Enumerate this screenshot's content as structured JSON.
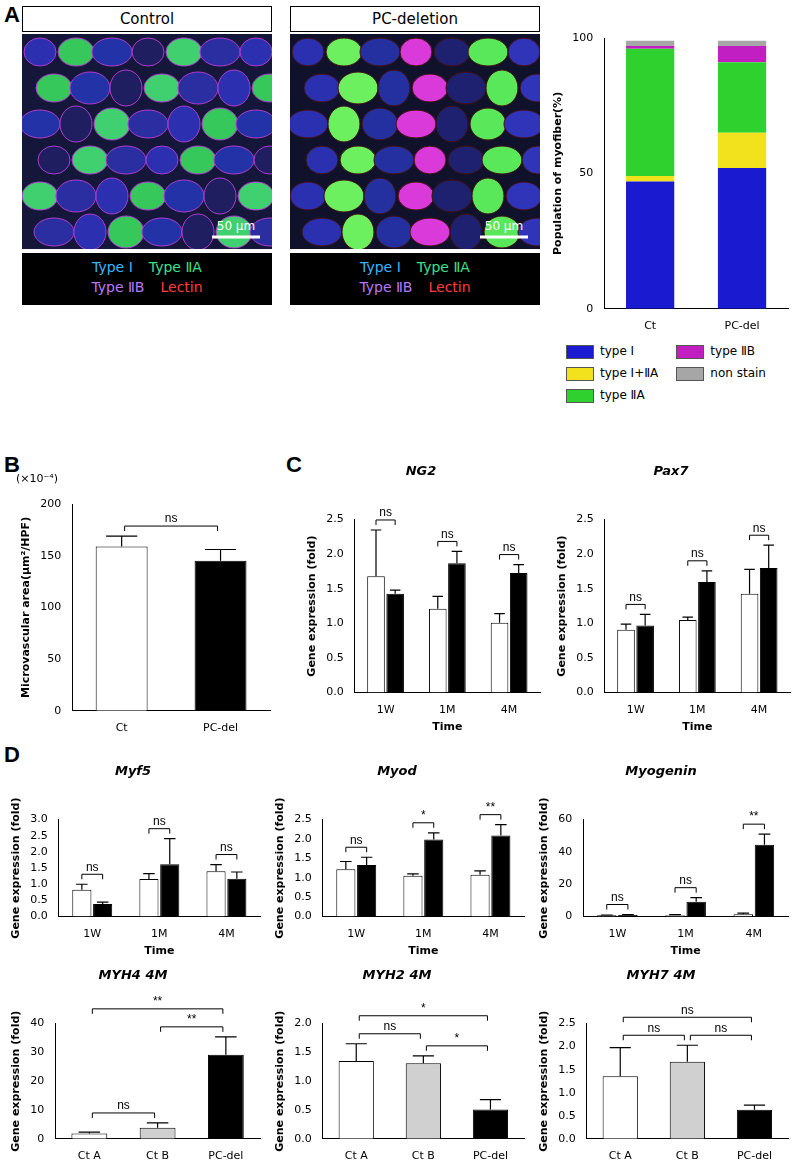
{
  "panel_labels": [
    "A",
    "B",
    "C",
    "D"
  ],
  "images": [
    {
      "header": "Control",
      "caption": [
        "Type Ⅰ",
        "Type ⅡA",
        "Type ⅡB",
        "Lectin"
      ],
      "scale_bar": "50 μm"
    },
    {
      "header": "PC-deletion",
      "caption": [
        "Type Ⅰ",
        "Type ⅡA",
        "Type ⅡB",
        "Lectin"
      ],
      "scale_bar": "50 μm"
    }
  ],
  "chart_data": [
    {
      "type": "bar",
      "stacked": true,
      "legend": "bottom",
      "ylabel": "Population of myofiber(%)",
      "categories": [
        "Ct",
        "PC-del"
      ],
      "series": [
        {
          "name": "type Ⅰ",
          "color": "#1a1ad0",
          "values": [
            47,
            52
          ]
        },
        {
          "name": "type Ⅰ+ⅡA",
          "color": "#f2e21e",
          "values": [
            2,
            13
          ]
        },
        {
          "name": "type ⅡA",
          "color": "#2fd12f",
          "values": [
            47,
            26
          ]
        },
        {
          "name": "type ⅡB",
          "color": "#c21fc2",
          "values": [
            1,
            6
          ]
        },
        {
          "name": "non stain",
          "color": "#a6a6a6",
          "values": [
            2,
            2
          ]
        }
      ],
      "ylim": [
        0,
        100
      ],
      "yticks": [
        0,
        50,
        100
      ]
    },
    {
      "type": "bar",
      "ylabel": "Microvascular area(μm²/HPF)",
      "annotation": "(×10⁻⁴)",
      "categories": [
        "Ct",
        "PC-del"
      ],
      "values": [
        159,
        145
      ],
      "errors": [
        10,
        11
      ],
      "colors": [
        "#ffffff",
        "#000000"
      ],
      "ylim": [
        0,
        200
      ],
      "yticks": [
        0,
        50,
        100,
        150,
        200
      ],
      "comparisons": [
        {
          "between": [
            "Ct",
            "PC-del"
          ],
          "label": "ns"
        }
      ]
    },
    {
      "type": "bar",
      "title": "NG2",
      "xlabel": "Time",
      "ylabel": "Gene expression (fold)",
      "categories": [
        "1W",
        "1M",
        "4M"
      ],
      "series": [
        {
          "color": "#ffffff",
          "values": [
            1.68,
            1.21,
            1.01
          ],
          "errors": [
            0.67,
            0.18,
            0.13
          ]
        },
        {
          "color": "#000000",
          "values": [
            1.43,
            1.87,
            1.73
          ],
          "errors": [
            0.05,
            0.17,
            0.12
          ]
        }
      ],
      "ylim": [
        0,
        2.5
      ],
      "yticks": [
        {
          "value": 0,
          "label": "0.0"
        },
        {
          "value": 0.5,
          "label": "0.5"
        },
        {
          "value": 1,
          "label": "1.0"
        },
        {
          "value": 1.5,
          "label": "1.5"
        },
        {
          "value": 2,
          "label": "2.0"
        },
        {
          "value": 2.5,
          "label": "2.5"
        }
      ],
      "annotations": [
        "ns",
        "ns",
        "ns"
      ]
    },
    {
      "type": "bar",
      "title": "Pax7",
      "xlabel": "Time",
      "ylabel": "Gene expression (fold)",
      "categories": [
        "1W",
        "1M",
        "4M"
      ],
      "series": [
        {
          "color": "#ffffff",
          "values": [
            0.91,
            1.05,
            1.43
          ],
          "errors": [
            0.08,
            0.04,
            0.35
          ]
        },
        {
          "color": "#000000",
          "values": [
            0.97,
            1.6,
            1.8
          ],
          "errors": [
            0.16,
            0.16,
            0.33
          ]
        }
      ],
      "ylim": [
        0,
        2.5
      ],
      "yticks": [
        {
          "value": 0,
          "label": "0.0"
        },
        {
          "value": 0.5,
          "label": "0.5"
        },
        {
          "value": 1,
          "label": "1.0"
        },
        {
          "value": 1.5,
          "label": "1.5"
        },
        {
          "value": 2,
          "label": "2.0"
        },
        {
          "value": 2.5,
          "label": "2.5"
        }
      ],
      "annotations": [
        "ns",
        "ns",
        "ns"
      ]
    },
    {
      "type": "bar",
      "title": "Myf5",
      "xlabel": "Time",
      "ylabel": "Gene expression (fold)",
      "categories": [
        "1W",
        "1M",
        "4M"
      ],
      "series": [
        {
          "color": "#ffffff",
          "values": [
            0.83,
            1.16,
            1.4
          ],
          "errors": [
            0.17,
            0.17,
            0.21
          ]
        },
        {
          "color": "#000000",
          "values": [
            0.39,
            1.62,
            1.17
          ],
          "errors": [
            0.06,
            0.79,
            0.21
          ]
        }
      ],
      "ylim": [
        0,
        3
      ],
      "yticks": [
        {
          "value": 0,
          "label": "0.0"
        },
        {
          "value": 0.5,
          "label": "0.5"
        },
        {
          "value": 1,
          "label": "1.0"
        },
        {
          "value": 1.5,
          "label": "1.5"
        },
        {
          "value": 2,
          "label": "2.0"
        },
        {
          "value": 2.5,
          "label": "2.5"
        },
        {
          "value": 3,
          "label": "3.0"
        }
      ],
      "annotations": [
        "ns",
        "ns",
        "ns"
      ]
    },
    {
      "type": "bar",
      "title": "Myod",
      "xlabel": "Time",
      "ylabel": "Gene expression (fold)",
      "categories": [
        "1W",
        "1M",
        "4M"
      ],
      "series": [
        {
          "color": "#ffffff",
          "values": [
            1.22,
            1.05,
            1.08
          ],
          "errors": [
            0.2,
            0.05,
            0.1
          ]
        },
        {
          "color": "#000000",
          "values": [
            1.33,
            1.99,
            2.09
          ],
          "errors": [
            0.2,
            0.17,
            0.28
          ]
        }
      ],
      "ylim": [
        0,
        2.5
      ],
      "yticks": [
        {
          "value": 0,
          "label": "0.0"
        },
        {
          "value": 0.5,
          "label": "0.5"
        },
        {
          "value": 1,
          "label": "1.0"
        },
        {
          "value": 1.5,
          "label": "1.5"
        },
        {
          "value": 2,
          "label": "2.0"
        },
        {
          "value": 2.5,
          "label": "2.5"
        }
      ],
      "annotations": [
        "ns",
        "*",
        "**"
      ]
    },
    {
      "type": "bar",
      "title": "Myogenin",
      "xlabel": "Time",
      "ylabel": "Gene expression (fold)",
      "categories": [
        "1W",
        "1M",
        "4M"
      ],
      "series": [
        {
          "color": "#ffffff",
          "values": [
            0.8,
            0.9,
            1.5
          ],
          "errors": [
            0.2,
            0.3,
            0.6
          ]
        },
        {
          "color": "#000000",
          "values": [
            1,
            9.2,
            44.5
          ],
          "errors": [
            0.3,
            2.5,
            6.5
          ]
        }
      ],
      "ylim": [
        0,
        60
      ],
      "yticks": [
        0,
        20,
        40,
        60
      ],
      "annotations": [
        "ns",
        "ns",
        "**"
      ]
    },
    {
      "type": "bar",
      "title": "MYH4 4M",
      "ylabel": "Gene expression (fold)",
      "categories": [
        "Ct A",
        "Ct B",
        "PC-del"
      ],
      "values": [
        1.8,
        3.8,
        29.2
      ],
      "errors": [
        0.5,
        1.7,
        6.2
      ],
      "colors": [
        "#ffffff",
        "#d0d0d0",
        "#000000"
      ],
      "ylim": [
        0,
        40
      ],
      "yticks": [
        0,
        10,
        20,
        30,
        40
      ],
      "comparisons": [
        {
          "between": [
            "Ct A",
            "Ct B"
          ],
          "label": "ns"
        },
        {
          "between": [
            "Ct B",
            "PC-del"
          ],
          "label": "**"
        },
        {
          "between": [
            "Ct A",
            "PC-del"
          ],
          "label": "**"
        }
      ]
    },
    {
      "type": "bar",
      "title": "MYH2 4M",
      "ylabel": "Gene expression (fold)",
      "categories": [
        "Ct A",
        "Ct B",
        "PC-del"
      ],
      "values": [
        1.35,
        1.31,
        0.51
      ],
      "errors": [
        0.3,
        0.13,
        0.17
      ],
      "colors": [
        "#ffffff",
        "#d0d0d0",
        "#000000"
      ],
      "ylim": [
        0,
        2
      ],
      "yticks": [
        {
          "value": 0,
          "label": "0.0"
        },
        {
          "value": 0.5,
          "label": "0.5"
        },
        {
          "value": 1,
          "label": "1.0"
        },
        {
          "value": 1.5,
          "label": "1.5"
        },
        {
          "value": 2,
          "label": "2.0"
        }
      ],
      "comparisons": [
        {
          "between": [
            "Ct A",
            "Ct B"
          ],
          "label": "ns"
        },
        {
          "between": [
            "Ct B",
            "PC-del"
          ],
          "label": "*"
        },
        {
          "between": [
            "Ct A",
            "PC-del"
          ],
          "label": "*"
        }
      ]
    },
    {
      "type": "bar",
      "title": "MYH7 4M",
      "ylabel": "Gene expression (fold)",
      "categories": [
        "Ct A",
        "Ct B",
        "PC-del"
      ],
      "values": [
        1.36,
        1.67,
        0.63
      ],
      "errors": [
        0.62,
        0.36,
        0.1
      ],
      "colors": [
        "#ffffff",
        "#d0d0d0",
        "#000000"
      ],
      "ylim": [
        0,
        2.5
      ],
      "yticks": [
        {
          "value": 0,
          "label": "0.0"
        },
        {
          "value": 0.5,
          "label": "0.5"
        },
        {
          "value": 1,
          "label": "1.0"
        },
        {
          "value": 1.5,
          "label": "1.5"
        },
        {
          "value": 2,
          "label": "2.0"
        },
        {
          "value": 2.5,
          "label": "2.5"
        }
      ],
      "comparisons": [
        {
          "between": [
            "Ct A",
            "Ct B"
          ],
          "label": "ns"
        },
        {
          "between": [
            "Ct B",
            "PC-del"
          ],
          "label": "ns"
        },
        {
          "between": [
            "Ct A",
            "PC-del"
          ],
          "label": "ns"
        }
      ]
    }
  ]
}
